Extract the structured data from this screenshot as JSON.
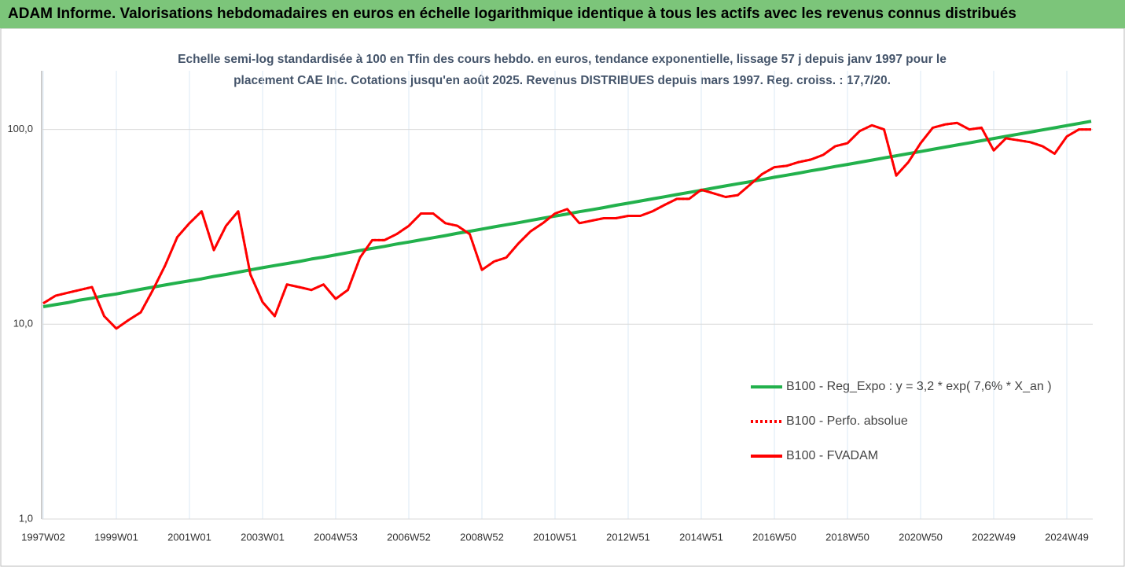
{
  "header": {
    "title": "ADAM Informe. Valorisations hebdomadaires en euros en échelle logarithmique identique à tous les actifs avec les revenus connus distribués"
  },
  "chart_data": {
    "type": "line",
    "subtitle": [
      "Echelle semi-log standardisée à 100 en Tfin des cours hebdo. en euros, tendance exponentielle, lissage 57 j depuis janv 1997 pour le",
      "placement CAE Inc. Cotations jusqu'en août 2025. Revenus DISTRIBUES depuis mars 1997. Reg. croiss. : 17,7/20."
    ],
    "categories": [
      "1997W02",
      null,
      null,
      null,
      null,
      null,
      "1999W01",
      null,
      null,
      null,
      null,
      null,
      "2001W01",
      null,
      null,
      null,
      null,
      null,
      "2003W01",
      null,
      null,
      null,
      null,
      null,
      "2004W53",
      null,
      null,
      null,
      null,
      null,
      "2006W52",
      null,
      null,
      null,
      null,
      null,
      "2008W52",
      null,
      null,
      null,
      null,
      null,
      "2010W51",
      null,
      null,
      null,
      null,
      null,
      "2012W51",
      null,
      null,
      null,
      null,
      null,
      "2014W51",
      null,
      null,
      null,
      null,
      null,
      "2016W50",
      null,
      null,
      null,
      null,
      null,
      "2018W50",
      null,
      null,
      null,
      null,
      null,
      "2020W50",
      null,
      null,
      null,
      null,
      null,
      "2022W49",
      null,
      null,
      null,
      null,
      null,
      "2024W49",
      null,
      null
    ],
    "series": [
      {
        "name": "B100 - Reg_Expo : y = 3,2 * exp( 7,6% *  X_an )",
        "color": "#22b14c",
        "style": "solid",
        "values": [
          12.3,
          12.6,
          12.9,
          13.3,
          13.6,
          14.0,
          14.3,
          14.7,
          15.1,
          15.5,
          15.9,
          16.3,
          16.7,
          17.1,
          17.6,
          18.0,
          18.5,
          19.0,
          19.5,
          20.0,
          20.5,
          21.0,
          21.6,
          22.1,
          22.7,
          23.3,
          23.9,
          24.5,
          25.1,
          25.8,
          26.4,
          27.1,
          27.8,
          28.5,
          29.3,
          30.0,
          30.8,
          31.6,
          32.4,
          33.2,
          34.1,
          35.0,
          35.9,
          36.8,
          37.8,
          38.7,
          39.7,
          40.8,
          41.8,
          42.9,
          44.0,
          45.1,
          46.3,
          47.5,
          48.7,
          50.0,
          51.3,
          52.6,
          53.9,
          55.3,
          56.8,
          58.2,
          59.7,
          61.3,
          62.8,
          64.5,
          66.1,
          67.8,
          69.6,
          71.4,
          73.2,
          75.1,
          77.0,
          79.0,
          81.1,
          83.2,
          85.3,
          87.5,
          89.8,
          92.1,
          94.5,
          96.9,
          99.4,
          101.9,
          104.6,
          107.3,
          110.1
        ]
      },
      {
        "name": "B100 - Perfo. absolue",
        "color": "#ff0000",
        "style": "dotted",
        "values": [
          12.8,
          14,
          14.5,
          15,
          15.5,
          11,
          9.5,
          10.5,
          11.5,
          15,
          20,
          28,
          33,
          38,
          24,
          32,
          38,
          18,
          13,
          11,
          16,
          15.5,
          15,
          16,
          13.5,
          15,
          22,
          27,
          27,
          29,
          32,
          37,
          37,
          33,
          32,
          29,
          19,
          21,
          22,
          26,
          30,
          33,
          37,
          39,
          33,
          34,
          35,
          35,
          36,
          36,
          38,
          41,
          44,
          44,
          49,
          47,
          45,
          46,
          52,
          59,
          64,
          65,
          68,
          70,
          74,
          82,
          85,
          98,
          105,
          100,
          58,
          68,
          85,
          102,
          106,
          108,
          100,
          102,
          78,
          90,
          88,
          86,
          82,
          75,
          92,
          100,
          100
        ]
      },
      {
        "name": "B100 - FVADAM",
        "color": "#ff0000",
        "style": "solid",
        "values": [
          12.8,
          14,
          14.5,
          15,
          15.5,
          11,
          9.5,
          10.5,
          11.5,
          15,
          20,
          28,
          33,
          38,
          24,
          32,
          38,
          18,
          13,
          11,
          16,
          15.5,
          15,
          16,
          13.5,
          15,
          22,
          27,
          27,
          29,
          32,
          37,
          37,
          33,
          32,
          29,
          19,
          21,
          22,
          26,
          30,
          33,
          37,
          39,
          33,
          34,
          35,
          35,
          36,
          36,
          38,
          41,
          44,
          44,
          49,
          47,
          45,
          46,
          52,
          59,
          64,
          65,
          68,
          70,
          74,
          82,
          85,
          98,
          105,
          100,
          58,
          68,
          85,
          102,
          106,
          108,
          100,
          102,
          78,
          90,
          88,
          86,
          82,
          75,
          92,
          100,
          100
        ]
      }
    ],
    "ylim": [
      1,
      200
    ],
    "yticks": [
      {
        "value": 1,
        "label": "1,0"
      },
      {
        "value": 10,
        "label": "10,0"
      },
      {
        "value": 100,
        "label": "100,0"
      }
    ],
    "log_scale": true,
    "grid": true,
    "legend": "right"
  }
}
